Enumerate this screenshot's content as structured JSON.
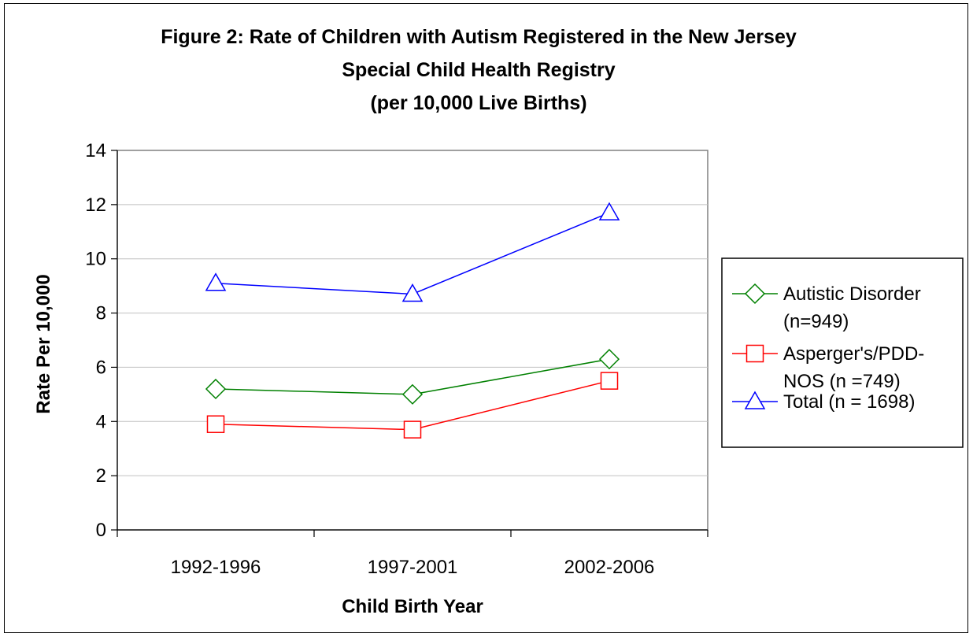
{
  "chart_data": {
    "type": "line",
    "title_lines": [
      "Figure 2: Rate of Children with Autism Registered in the New Jersey",
      "Special Child Health Registry",
      "(per 10,000 Live Births)"
    ],
    "xlabel": "Child Birth Year",
    "ylabel": "Rate Per 10,000",
    "categories": [
      "1992-1996",
      "1997-2001",
      "2002-2006"
    ],
    "ylim": [
      0,
      14
    ],
    "yticks": [
      0,
      2,
      4,
      6,
      8,
      10,
      12,
      14
    ],
    "ytick_labels": [
      "0",
      "2",
      "4",
      "6",
      "8",
      "10",
      "12",
      "14"
    ],
    "grid": true,
    "legend_position": "right",
    "series": [
      {
        "name": "Autistic Disorder (n=949)",
        "legend_lines": [
          "Autistic Disorder",
          "(n=949)"
        ],
        "values": [
          5.2,
          5.0,
          6.3
        ],
        "color": "#008000",
        "marker": "diamond"
      },
      {
        "name": "Asperger's/PDD-NOS (n =749)",
        "legend_lines": [
          "Asperger's/PDD-",
          "NOS (n =749)"
        ],
        "values": [
          3.9,
          3.7,
          5.5
        ],
        "color": "#ff0000",
        "marker": "square"
      },
      {
        "name": "Total (n = 1698)",
        "legend_lines": [
          "Total (n = 1698)"
        ],
        "values": [
          9.1,
          8.7,
          11.7
        ],
        "color": "#0000ff",
        "marker": "triangle"
      }
    ]
  }
}
